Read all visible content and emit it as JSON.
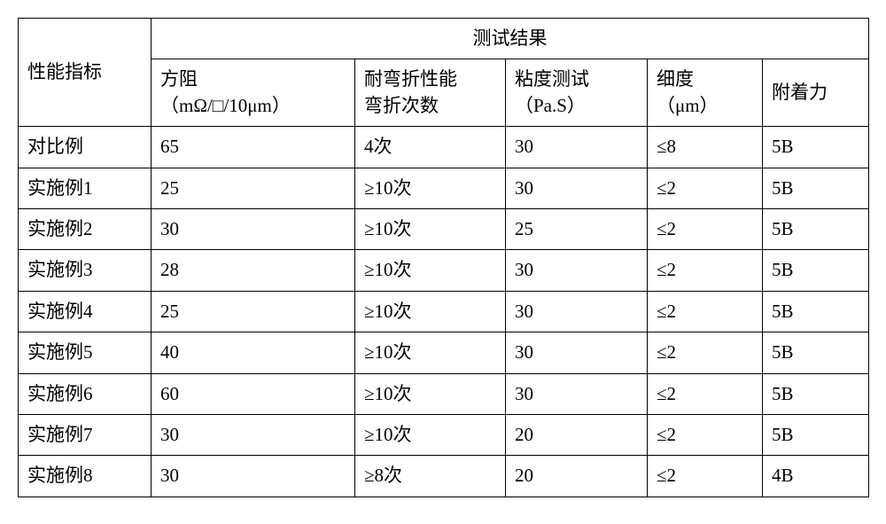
{
  "table": {
    "header_row_label": "性能指标",
    "header_results": "测试结果",
    "columns": [
      {
        "line1": "方阻",
        "line2": "（mΩ/□/10μm）"
      },
      {
        "line1": "耐弯折性能",
        "line2": "弯折次数"
      },
      {
        "line1": "粘度测试",
        "line2": "（Pa.S）"
      },
      {
        "line1": "细度",
        "line2": "（μm）"
      },
      {
        "line1": "附着力",
        "line2": ""
      }
    ],
    "rows": [
      {
        "label": "对比例",
        "c1": "65",
        "c2": "4次",
        "c3": "30",
        "c4": "≤8",
        "c5": "5B"
      },
      {
        "label": "实施例1",
        "c1": "25",
        "c2": "≥10次",
        "c3": "30",
        "c4": "≤2",
        "c5": "5B"
      },
      {
        "label": "实施例2",
        "c1": "30",
        "c2": "≥10次",
        "c3": "25",
        "c4": "≤2",
        "c5": "5B"
      },
      {
        "label": "实施例3",
        "c1": "28",
        "c2": "≥10次",
        "c3": "30",
        "c4": "≤2",
        "c5": "5B"
      },
      {
        "label": "实施例4",
        "c1": "25",
        "c2": "≥10次",
        "c3": "30",
        "c4": "≤2",
        "c5": "5B"
      },
      {
        "label": "实施例5",
        "c1": "40",
        "c2": "≥10次",
        "c3": "30",
        "c4": "≤2",
        "c5": "5B"
      },
      {
        "label": "实施例6",
        "c1": "60",
        "c2": "≥10次",
        "c3": "30",
        "c4": "≤2",
        "c5": "5B"
      },
      {
        "label": "实施例7",
        "c1": "30",
        "c2": "≥10次",
        "c3": "20",
        "c4": "≤2",
        "c5": "5B"
      },
      {
        "label": "实施例8",
        "c1": "30",
        "c2": "≥8次",
        "c3": "20",
        "c4": "≤2",
        "c5": "4B"
      }
    ],
    "border_color": "#000000",
    "background_color": "#ffffff",
    "font_size": 21,
    "cell_padding_v": 8,
    "cell_padding_h": 10
  }
}
